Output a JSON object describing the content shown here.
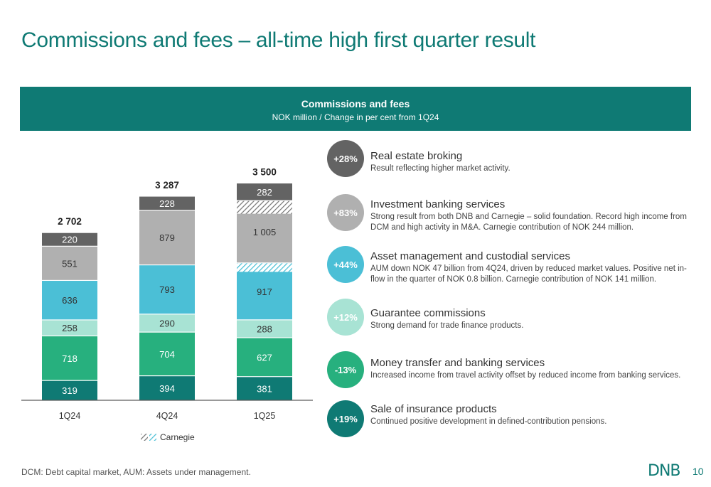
{
  "title": "Commissions and fees – all-time high first quarter result",
  "banner": {
    "title": "Commissions and fees",
    "subtitle": "NOK million / Change in per cent from 1Q24"
  },
  "chart_data": {
    "type": "bar",
    "stacked": true,
    "categories": [
      "1Q24",
      "4Q24",
      "1Q25"
    ],
    "totals": [
      "2 702",
      "3 287",
      "3 500"
    ],
    "series": [
      {
        "name": "Sale of insurance products",
        "color": "#0f7a74",
        "values": [
          319,
          394,
          381
        ]
      },
      {
        "name": "Money transfer and banking services",
        "color": "#27b07e",
        "values": [
          718,
          704,
          627
        ]
      },
      {
        "name": "Guarantee commissions",
        "color": "#a8e3d4",
        "values": [
          258,
          290,
          288
        ]
      },
      {
        "name": "Asset management and custodial services",
        "color": "#4bbfd6",
        "values": [
          636,
          793,
          917
        ]
      },
      {
        "name": "Investment banking services",
        "color": "#b0b0b0",
        "values": [
          551,
          879,
          1005
        ]
      },
      {
        "name": "Real estate broking",
        "color": "#636363",
        "values": [
          220,
          228,
          282
        ]
      }
    ],
    "value_labels": [
      [
        "319",
        "394",
        "381"
      ],
      [
        "718",
        "704",
        "627"
      ],
      [
        "258",
        "290",
        "288"
      ],
      [
        "636",
        "793",
        "917"
      ],
      [
        "551",
        "879",
        "1 005"
      ],
      [
        "220",
        "228",
        "282"
      ]
    ],
    "carnegie": {
      "legend_label": "Carnegie",
      "contributions": [
        {
          "category": "1Q25",
          "series": "Asset management and custodial services",
          "value": 141
        },
        {
          "category": "1Q25",
          "series": "Investment banking services",
          "value": 244
        }
      ]
    },
    "ylim": [
      0,
      3600
    ]
  },
  "categories": [
    {
      "change": "+28%",
      "color": "#636363",
      "name": "Real estate broking",
      "desc": "Result reflecting higher market activity."
    },
    {
      "change": "+83%",
      "color": "#b0b0b0",
      "name": "Investment banking services",
      "desc": "Strong result from both DNB and Carnegie – solid foundation. Record high income from DCM and high activity in M&A. Carnegie contribution of NOK 244 million."
    },
    {
      "change": "+44%",
      "color": "#4bbfd6",
      "name": "Asset management and custodial services",
      "desc": "AUM down NOK 47 billion from 4Q24, driven by reduced market values. Positive net in-flow in the quarter of NOK 0.8 billion. Carnegie contribution of NOK 141 million."
    },
    {
      "change": "+12%",
      "color": "#a8e3d4",
      "name": "Guarantee commissions",
      "desc": "Strong demand for trade finance products."
    },
    {
      "change": "-13%",
      "color": "#27b07e",
      "name": "Money transfer and banking services",
      "desc": "Increased income from travel activity offset by reduced income from banking services."
    },
    {
      "change": "+19%",
      "color": "#0f7a74",
      "name": "Sale of insurance products",
      "desc": "Continued positive development in defined-contribution pensions."
    }
  ],
  "footnote": "DCM: Debt capital market, AUM: Assets under management.",
  "logo": "DNB",
  "page_number": "10"
}
